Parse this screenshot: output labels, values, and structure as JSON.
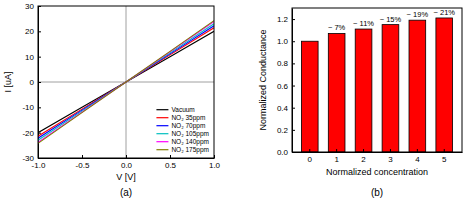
{
  "chart_data": [
    {
      "type": "line",
      "caption": "(a)",
      "x_label": "V [V]",
      "y_label": "I [uA]",
      "x": [
        -1,
        -0.5,
        0,
        0.5,
        1
      ],
      "series": [
        {
          "name": "Vacuum",
          "color": "#000000",
          "values": [
            -20,
            -10,
            0,
            10,
            20
          ]
        },
        {
          "name": "NO₂ 35ppm",
          "color": "#ff0000",
          "values": [
            -21.4,
            -10.7,
            0,
            10.7,
            21.4
          ]
        },
        {
          "name": "NO₂ 70ppm",
          "color": "#0000ff",
          "values": [
            -22.2,
            -11.1,
            0,
            11.1,
            22.2
          ]
        },
        {
          "name": "NO₂ 105ppm",
          "color": "#00bfbf",
          "values": [
            -23,
            -11.5,
            0,
            11.5,
            23
          ]
        },
        {
          "name": "NO₂ 140ppm",
          "color": "#ff00ff",
          "values": [
            -23.8,
            -11.9,
            0,
            11.9,
            23.8
          ]
        },
        {
          "name": "NO₂ 175ppm",
          "color": "#808000",
          "values": [
            -24.2,
            -12.1,
            0,
            12.1,
            24.2
          ]
        }
      ],
      "xlim": [
        -1,
        1
      ],
      "xticks": [
        {
          "value": -1,
          "label": "-1.0"
        },
        {
          "value": -0.5,
          "label": "-0.5"
        },
        {
          "value": 0,
          "label": "0.0"
        },
        {
          "value": 0.5,
          "label": "0.5"
        },
        {
          "value": 1,
          "label": "1.0"
        }
      ],
      "ylim": [
        -30,
        30
      ],
      "yticks": [
        -30,
        -20,
        -10,
        0,
        10,
        20,
        30
      ],
      "legend": "lower right",
      "grid": false
    },
    {
      "type": "bar",
      "caption": "(b)",
      "x_label": "Normalized concentration",
      "y_label": "Normalized Conductance",
      "categories": [
        "0",
        "1",
        "2",
        "3",
        "4",
        "5"
      ],
      "values": [
        1.0,
        1.07,
        1.11,
        1.15,
        1.19,
        1.21
      ],
      "color": "#ff0000",
      "ylim": [
        0,
        1.3
      ],
      "yticks": [
        {
          "value": 0,
          "label": "0.0"
        },
        {
          "value": 0.2,
          "label": "0.2"
        },
        {
          "value": 0.4,
          "label": "0.4"
        },
        {
          "value": 0.6,
          "label": "0.6"
        },
        {
          "value": 0.8,
          "label": "0.8"
        },
        {
          "value": 1.0,
          "label": "1.0"
        },
        {
          "value": 1.2,
          "label": "1.2"
        }
      ],
      "annotations": [
        {
          "category": "1",
          "text": "~ 7%"
        },
        {
          "category": "2",
          "text": "~ 11%"
        },
        {
          "category": "3",
          "text": "~ 15%"
        },
        {
          "category": "4",
          "text": "~ 19%"
        },
        {
          "category": "5",
          "text": "~ 21%"
        }
      ],
      "grid": false
    }
  ]
}
